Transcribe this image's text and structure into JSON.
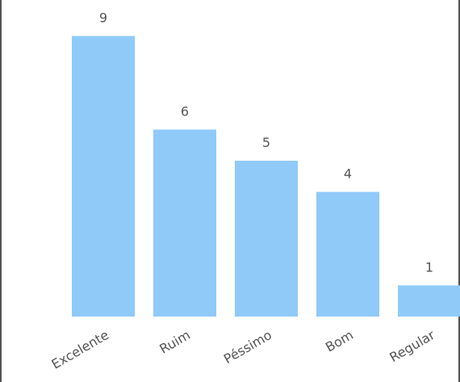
{
  "chart_data": {
    "type": "bar",
    "categories": [
      "Excelente",
      "Ruim",
      "Péssimo",
      "Bom",
      "Regular"
    ],
    "values": [
      9,
      6,
      5,
      4,
      1
    ],
    "title": "",
    "xlabel": "",
    "ylabel": "",
    "ylim": [
      0,
      9
    ],
    "grid": false,
    "legend": "none",
    "show_value_labels": true,
    "x_tick_rotation": -30,
    "colors": {
      "bar": "#90caf9",
      "label_text": "#555555",
      "frame": "#1a1a1a"
    }
  }
}
